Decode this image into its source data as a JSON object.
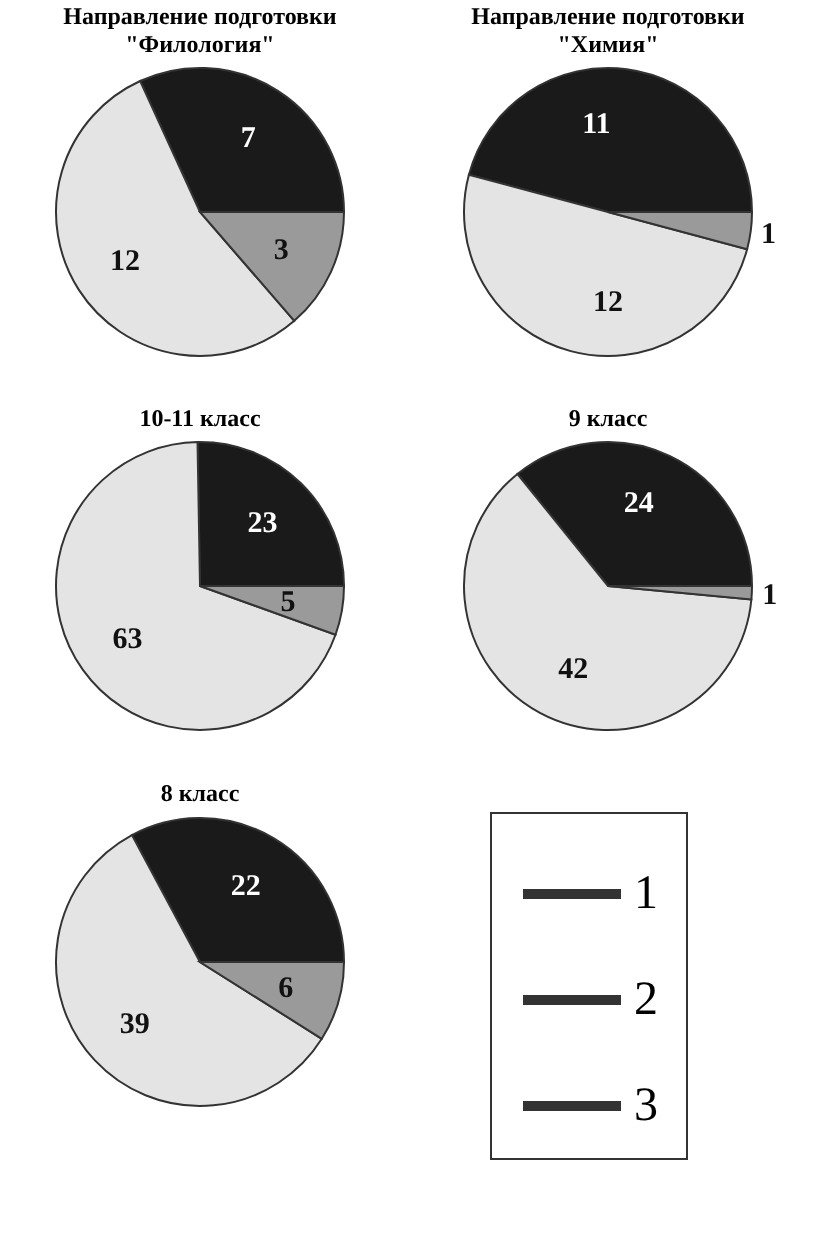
{
  "chart_data": [
    {
      "type": "pie",
      "title": "Направление подготовки\n\"Филология\"",
      "categories": [
        null,
        null,
        null
      ],
      "values": [
        7,
        12,
        3
      ],
      "colors": [
        "#1a1a1a",
        "#e4e4e4",
        "#9a9a9a"
      ],
      "data_labels": true
    },
    {
      "type": "pie",
      "title": "Направление подготовки\n\"Химия\"",
      "categories": [
        null,
        null,
        null
      ],
      "values": [
        11,
        12,
        1
      ],
      "colors": [
        "#1a1a1a",
        "#e4e4e4",
        "#9a9a9a"
      ],
      "data_labels": true
    },
    {
      "type": "pie",
      "title": "10-11 класс",
      "categories": [
        null,
        null,
        null
      ],
      "values": [
        23,
        63,
        5
      ],
      "colors": [
        "#1a1a1a",
        "#e4e4e4",
        "#9a9a9a"
      ],
      "data_labels": true
    },
    {
      "type": "pie",
      "title": "9 класс",
      "categories": [
        null,
        null,
        null
      ],
      "values": [
        24,
        42,
        1
      ],
      "colors": [
        "#1a1a1a",
        "#e4e4e4",
        "#9a9a9a"
      ],
      "data_labels": true
    },
    {
      "type": "pie",
      "title": "8 класс",
      "categories": [
        "1",
        "2",
        "3"
      ],
      "values": [
        22,
        39,
        6
      ],
      "colors": [
        "#1a1a1a",
        "#e4e4e4",
        "#9a9a9a"
      ],
      "data_labels": true,
      "legend": "right"
    }
  ]
}
